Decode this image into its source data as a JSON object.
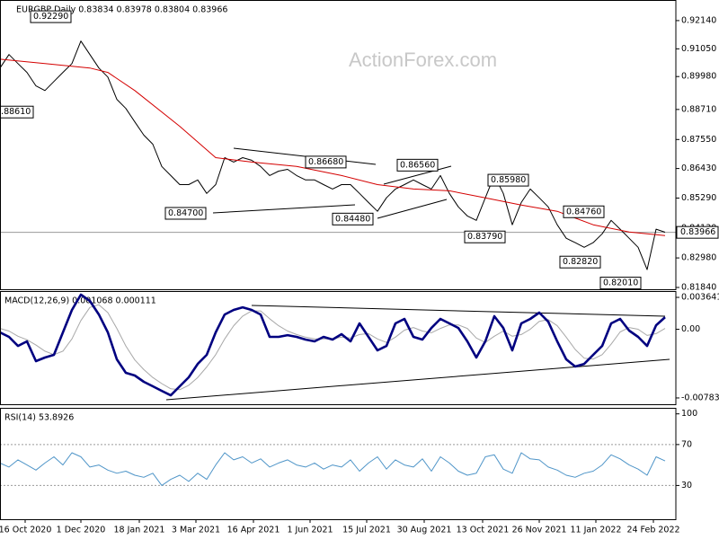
{
  "chart_data": [
    {
      "type": "line",
      "title": "EURGBP,Daily  0.83834 0.83978 0.83804 0.83966",
      "watermark": "ActionForex.com",
      "xlim": [
        0,
        376
      ],
      "ylim": [
        0.8177,
        0.929
      ],
      "yticks": [
        {
          "value": 0.9214,
          "label": "0.92140"
        },
        {
          "value": 0.9105,
          "label": "0.91050"
        },
        {
          "value": 0.8998,
          "label": "0.89980"
        },
        {
          "value": 0.8871,
          "label": "0.88710"
        },
        {
          "value": 0.8755,
          "label": "0.87550"
        },
        {
          "value": 0.8643,
          "label": "0.86430"
        },
        {
          "value": 0.8529,
          "label": "0.85290"
        },
        {
          "value": 0.8413,
          "label": "0.84130"
        },
        {
          "value": 0.8298,
          "label": "0.82980"
        },
        {
          "value": 0.8184,
          "label": "0.81840"
        }
      ],
      "last_price": 0.83966,
      "series": [
        {
          "color": "#000000",
          "x": [
            0,
            5,
            10,
            15,
            20,
            25,
            30,
            35,
            40,
            45,
            50,
            55,
            60,
            65,
            70,
            75,
            80,
            85,
            90,
            95,
            100,
            105,
            110,
            115,
            120,
            125,
            130,
            135,
            140,
            145,
            150,
            155,
            160,
            165,
            170,
            175,
            180,
            185,
            190,
            195,
            200,
            205,
            210,
            215,
            220,
            225,
            230,
            235,
            240,
            245,
            250,
            255,
            260,
            265,
            270,
            275,
            280,
            285,
            290,
            295,
            300,
            305,
            310,
            315,
            320,
            325,
            330,
            335,
            340,
            345,
            350,
            355,
            360,
            365,
            370
          ],
          "values": [
            0.9031,
            0.9083,
            0.9048,
            0.9014,
            0.8962,
            0.8944,
            0.8979,
            0.9014,
            0.9048,
            0.9135,
            0.9083,
            0.9031,
            0.8996,
            0.891,
            0.8875,
            0.8823,
            0.8772,
            0.8737,
            0.8651,
            0.8616,
            0.8581,
            0.8581,
            0.8599,
            0.8547,
            0.8581,
            0.8685,
            0.8668,
            0.8685,
            0.8675,
            0.8651,
            0.8616,
            0.8633,
            0.864,
            0.8616,
            0.8599,
            0.8599,
            0.8581,
            0.8564,
            0.8581,
            0.8581,
            0.8547,
            0.8512,
            0.8478,
            0.853,
            0.8564,
            0.8581,
            0.8599,
            0.8581,
            0.8564,
            0.8616,
            0.8547,
            0.8495,
            0.846,
            0.8443,
            0.853,
            0.8616,
            0.8547,
            0.8426,
            0.8512,
            0.8564,
            0.853,
            0.8495,
            0.8426,
            0.8374,
            0.8357,
            0.8339,
            0.8357,
            0.8391,
            0.8443,
            0.8409,
            0.8374,
            0.8339,
            0.8253,
            0.8409,
            0.8397
          ]
        },
        {
          "color": "#d40000",
          "x": [
            0,
            25,
            50,
            60,
            75,
            100,
            120,
            140,
            165,
            190,
            210,
            230,
            250,
            270,
            290,
            310,
            330,
            350,
            370
          ],
          "values": [
            0.9065,
            0.9048,
            0.9031,
            0.9014,
            0.8944,
            0.8806,
            0.8685,
            0.8668,
            0.8651,
            0.8616,
            0.8581,
            0.8564,
            0.8557,
            0.853,
            0.8502,
            0.8478,
            0.8426,
            0.8398,
            0.8384
          ]
        }
      ],
      "annotations": [
        {
          "value": 0.9229,
          "label": "0.92290",
          "x": 17
        },
        {
          "value": 0.8861,
          "label": "0.88610",
          "x": -4
        },
        {
          "value": 0.847,
          "label": "0.84700",
          "x": 92
        },
        {
          "value": 0.8668,
          "label": "0.86680",
          "x": 170
        },
        {
          "value": 0.8448,
          "label": "0.84480",
          "x": 185
        },
        {
          "value": 0.8656,
          "label": "0.86560",
          "x": 221
        },
        {
          "value": 0.8379,
          "label": "0.83790",
          "x": 258.5
        },
        {
          "value": 0.8598,
          "label": "0.85980",
          "x": 271.5
        },
        {
          "value": 0.8476,
          "label": "0.84760",
          "x": 313.5
        },
        {
          "value": 0.8282,
          "label": "0.82820",
          "x": 311.5
        },
        {
          "value": 0.8201,
          "label": "0.82010",
          "x": 334
        }
      ]
    },
    {
      "type": "line",
      "title": "MACD(12,26,9) 0.001068 0.000111",
      "xlim": [
        0,
        376
      ],
      "ylim": [
        -0.00856,
        0.00426
      ],
      "yticks": [
        0.003641,
        {
          "value": 0,
          "label": "0.00"
        },
        -0.007839
      ],
      "series": [
        {
          "color": "#a8a8a8",
          "width": 1,
          "x": [
            0,
            5,
            10,
            15,
            20,
            25,
            30,
            35,
            40,
            45,
            50,
            55,
            60,
            65,
            70,
            75,
            80,
            85,
            90,
            95,
            100,
            105,
            110,
            115,
            120,
            125,
            130,
            135,
            140,
            145,
            150,
            155,
            160,
            165,
            170,
            175,
            180,
            185,
            190,
            195,
            200,
            205,
            210,
            215,
            220,
            225,
            230,
            235,
            240,
            245,
            250,
            255,
            260,
            265,
            270,
            275,
            280,
            285,
            290,
            295,
            300,
            305,
            310,
            315,
            320,
            325,
            330,
            335,
            340,
            345,
            350,
            355,
            360,
            365,
            370
          ],
          "values": [
            0.0001,
            -0.0002,
            -0.0008,
            -0.0012,
            -0.0018,
            -0.0025,
            -0.0029,
            -0.0025,
            -0.0011,
            0.001,
            0.0025,
            0.0028,
            0.0019,
            0.0001,
            -0.0019,
            -0.0035,
            -0.0046,
            -0.0055,
            -0.0062,
            -0.0068,
            -0.0069,
            -0.0064,
            -0.0055,
            -0.0043,
            -0.0029,
            -0.0011,
            0.0004,
            0.0015,
            0.0021,
            0.0021,
            0.0012,
            0.0004,
            -0.0002,
            -0.0006,
            -0.0009,
            -0.0011,
            -0.0011,
            -0.0011,
            -0.0009,
            -0.001,
            -0.0006,
            -0.0005,
            -0.0011,
            -0.0015,
            -0.0009,
            -0.0001,
            0.0002,
            -0.0002,
            -0.0004,
            0.0001,
            0.0005,
            0.0005,
            0.0001,
            -0.001,
            -0.0015,
            -0.0008,
            -0.0002,
            -0.0008,
            -0.0006,
            0,
            0.0009,
            0.0011,
            0.0004,
            -0.0009,
            -0.0023,
            -0.0033,
            -0.0034,
            -0.0029,
            -0.0017,
            -0.0003,
            0.0002,
            0,
            -0.0007,
            -0.0005,
            0.0001
          ]
        },
        {
          "color": "#000080",
          "width": 2.6,
          "x": [
            0,
            5,
            10,
            15,
            20,
            25,
            30,
            35,
            40,
            45,
            50,
            55,
            60,
            65,
            70,
            75,
            80,
            85,
            90,
            95,
            100,
            105,
            110,
            115,
            120,
            125,
            130,
            135,
            140,
            145,
            150,
            155,
            160,
            165,
            170,
            175,
            180,
            185,
            190,
            195,
            200,
            205,
            210,
            215,
            220,
            225,
            230,
            235,
            240,
            245,
            250,
            255,
            260,
            265,
            270,
            275,
            280,
            285,
            290,
            295,
            300,
            305,
            310,
            315,
            320,
            325,
            330,
            335,
            340,
            345,
            350,
            355,
            360,
            365,
            370
          ],
          "values": [
            -0.00036,
            -0.00087,
            -0.0019,
            -0.00138,
            -0.00364,
            -0.00323,
            -0.00292,
            -0.00036,
            0.0022,
            0.00395,
            0.00323,
            0.00169,
            -0.00036,
            -0.00343,
            -0.00497,
            -0.00528,
            -0.006,
            -0.00651,
            -0.00703,
            -0.00754,
            -0.00651,
            -0.00548,
            -0.00395,
            -0.00292,
            -0.00036,
            0.00169,
            0.00221,
            0.00251,
            0.00221,
            0.00169,
            -0.00087,
            -0.00087,
            -0.00067,
            -0.00087,
            -0.00118,
            -0.00138,
            -0.00087,
            -0.00118,
            -0.00056,
            -0.00138,
            0.00067,
            -0.00087,
            -0.00241,
            -0.0019,
            0.00067,
            0.00118,
            -0.00087,
            -0.00118,
            0.00015,
            0.00118,
            0.00067,
            0.00015,
            -0.00138,
            -0.00323,
            -0.00138,
            0.00149,
            0.00015,
            -0.00241,
            0.00067,
            0.00118,
            0.0019,
            0.00087,
            -0.00138,
            -0.00343,
            -0.00425,
            -0.00395,
            -0.00292,
            -0.0019,
            0.00067,
            0.00118,
            -0.00015,
            -0.00087,
            -0.0019,
            0.00046,
            0.00138
          ]
        }
      ]
    },
    {
      "type": "line",
      "title": "RSI(14) 53.8926",
      "xlim": [
        0,
        376
      ],
      "ylim": [
        -3,
        105
      ],
      "yticks": [
        100,
        70,
        30
      ],
      "levels": [
        70,
        30
      ],
      "xticks": [
        {
          "value": 14,
          "label": "16 Oct 2020"
        },
        {
          "value": 45,
          "label": "1 Dec 2020"
        },
        {
          "value": 77.5,
          "label": "18 Jan 2021"
        },
        {
          "value": 109,
          "label": "3 Mar 2021"
        },
        {
          "value": 141,
          "label": "16 Apr 2021"
        },
        {
          "value": 172.5,
          "label": "1 Jun 2021"
        },
        {
          "value": 204,
          "label": "15 Jul 2021"
        },
        {
          "value": 236,
          "label": "30 Aug 2021"
        },
        {
          "value": 268.5,
          "label": "13 Oct 2021"
        },
        {
          "value": 300,
          "label": "26 Nov 2021"
        },
        {
          "value": 331.5,
          "label": "11 Jan 2022"
        },
        {
          "value": 363.5,
          "label": "24 Feb 2022"
        }
      ],
      "series": [
        {
          "color": "#4f95c8",
          "width": 1,
          "x": [
            0,
            5,
            10,
            15,
            20,
            25,
            30,
            35,
            40,
            45,
            50,
            55,
            60,
            65,
            70,
            75,
            80,
            85,
            90,
            95,
            100,
            105,
            110,
            115,
            120,
            125,
            130,
            135,
            140,
            145,
            150,
            155,
            160,
            165,
            170,
            175,
            180,
            185,
            190,
            195,
            200,
            205,
            210,
            215,
            220,
            225,
            230,
            235,
            240,
            245,
            250,
            255,
            260,
            265,
            270,
            275,
            280,
            285,
            290,
            295,
            300,
            305,
            310,
            315,
            320,
            325,
            330,
            335,
            340,
            345,
            350,
            355,
            360,
            365,
            370
          ],
          "values": [
            52,
            48,
            55,
            50,
            45,
            52,
            58,
            50,
            62,
            58,
            48,
            50,
            45,
            42,
            44,
            40,
            38,
            42,
            30,
            36,
            40,
            34,
            42,
            36,
            50,
            62,
            55,
            58,
            52,
            56,
            48,
            52,
            55,
            50,
            48,
            52,
            46,
            50,
            48,
            55,
            44,
            52,
            58,
            46,
            55,
            50,
            48,
            56,
            44,
            58,
            52,
            44,
            40,
            42,
            58,
            60,
            46,
            42,
            62,
            56,
            55,
            48,
            45,
            40,
            38,
            42,
            44,
            50,
            60,
            56,
            50,
            46,
            40,
            58,
            54
          ]
        }
      ]
    }
  ]
}
